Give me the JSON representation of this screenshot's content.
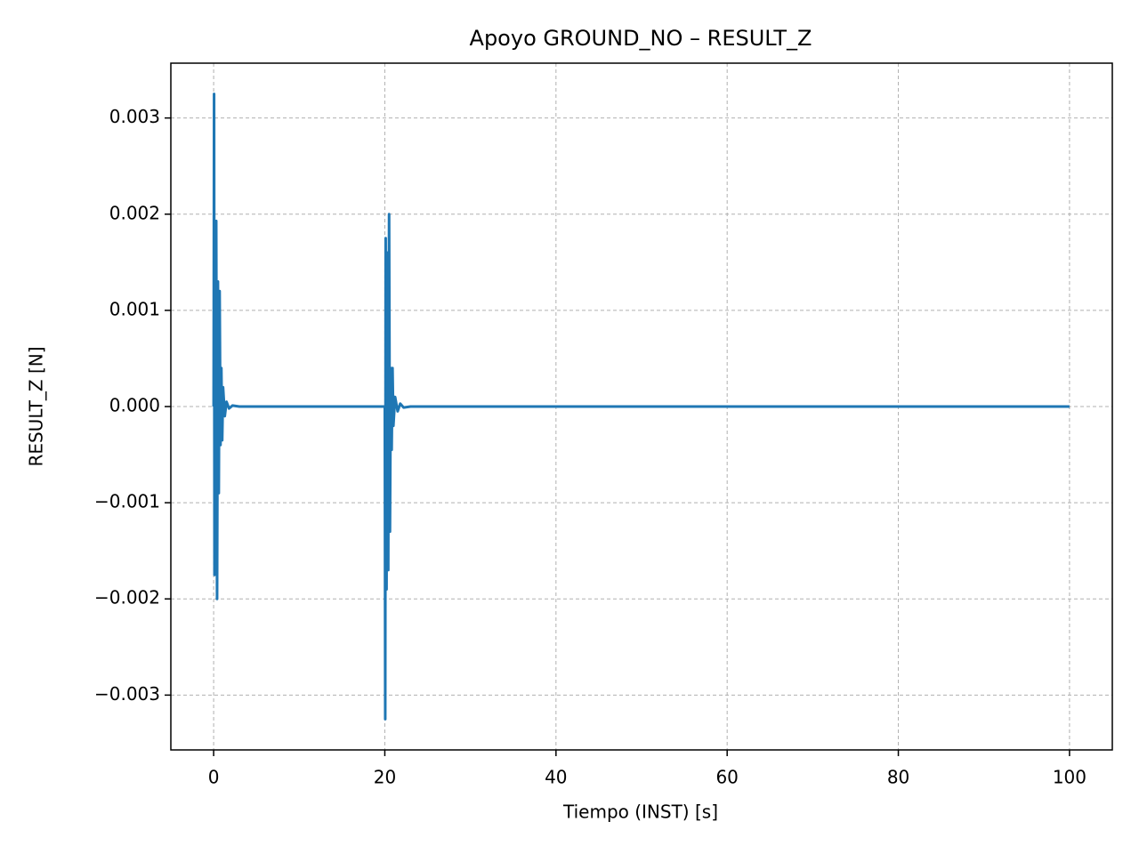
{
  "chart_data": {
    "type": "line",
    "title": "Apoyo GROUND_NO – RESULT_Z",
    "xlabel": "Tiempo (INST) [s]",
    "ylabel": "RESULT_Z [N]",
    "grid": true,
    "xlim": [
      -5,
      105
    ],
    "ylim": [
      -0.00357,
      0.00357
    ],
    "xticks": [
      0,
      20,
      40,
      60,
      80,
      100
    ],
    "yticks": [
      {
        "value": -0.003,
        "label": "−0.003"
      },
      {
        "value": -0.002,
        "label": "−0.002"
      },
      {
        "value": -0.001,
        "label": "−0.001"
      },
      {
        "value": 0,
        "label": "0.000"
      },
      0.001,
      0.002,
      0.003
    ],
    "series": [
      {
        "name": "RESULT_Z",
        "color": "#1f77b4",
        "x": [
          0,
          0.05,
          0.1,
          0.15,
          0.2,
          0.3,
          0.4,
          0.5,
          0.6,
          0.7,
          0.8,
          0.9,
          1.0,
          1.1,
          1.3,
          1.5,
          1.8,
          2.2,
          3,
          20,
          20.05,
          20.1,
          20.2,
          20.3,
          20.4,
          20.5,
          20.6,
          20.7,
          20.8,
          20.9,
          21.0,
          21.2,
          21.5,
          21.8,
          22.2,
          23,
          100
        ],
        "values": [
          0,
          0.00325,
          -0.00175,
          0.0019,
          -0.00165,
          0.00193,
          -0.002,
          0.0013,
          -0.0009,
          0.0012,
          -0.0004,
          0.0004,
          -0.00035,
          0.0002,
          -0.0001,
          5e-05,
          -2e-05,
          1e-05,
          0,
          0,
          -0.00325,
          0.00175,
          -0.0019,
          0.0016,
          -0.0017,
          0.002,
          -0.0013,
          0.0004,
          -0.00045,
          0.0004,
          -0.0002,
          0.0001,
          -5e-05,
          3e-05,
          -1e-05,
          0,
          0
        ]
      }
    ]
  }
}
